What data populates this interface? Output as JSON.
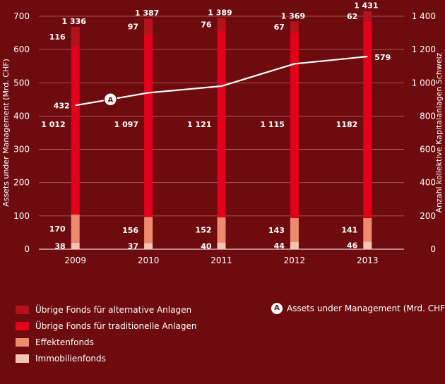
{
  "chart_data": {
    "type": "bar",
    "categories": [
      "2009",
      "2010",
      "2011",
      "2012",
      "2013"
    ],
    "series": [
      {
        "name": "Immobilienfonds",
        "color": "#f6c4b3",
        "values": [
          38,
          37,
          40,
          44,
          46
        ]
      },
      {
        "name": "Effektenfonds",
        "color": "#ee8a6d",
        "values": [
          170,
          156,
          152,
          143,
          141
        ]
      },
      {
        "name": "Übrige Fonds für traditionelle Anlagen",
        "color": "#e2001a",
        "values": [
          1012,
          1097,
          1121,
          1115,
          1182
        ]
      },
      {
        "name": "Übrige Fonds für alternative Anlagen",
        "color": "#b5111d",
        "values": [
          116,
          97,
          76,
          67,
          62
        ]
      }
    ],
    "value_labels": {
      "Immobilienfonds": [
        "38",
        "37",
        "40",
        "44",
        "46"
      ],
      "Effektenfonds": [
        "170",
        "156",
        "152",
        "143",
        "141"
      ],
      "Übrige Fonds für traditionelle Anlagen": [
        "1 012",
        "1 097",
        "1 121",
        "1 115",
        "1182"
      ],
      "Übrige Fonds für alternative Anlagen": [
        "116",
        "97",
        "76",
        "67",
        "62"
      ]
    },
    "totals": [
      "1 336",
      "1 387",
      "1 389",
      "1 369",
      "1 431"
    ],
    "totals_values": [
      1336,
      1387,
      1389,
      1369,
      1431
    ],
    "line": {
      "name": "Assets under Management (Mrd. CHF)",
      "marker": "A",
      "values": [
        432,
        470,
        490,
        557,
        579
      ],
      "labels": {
        "first": "432",
        "last": "579"
      }
    },
    "ylabel_left": "Assets under Management (Mrd. CHF)",
    "ylabel_right": "Anzahl kollektive Kapitalanlagen Schweiz",
    "ylim_left": [
      0,
      700
    ],
    "ylim_right": [
      0,
      1400
    ],
    "yticks_left": [
      "0",
      "100",
      "200",
      "300",
      "400",
      "500",
      "600",
      "700"
    ],
    "yticks_right": [
      "0",
      "200",
      "400",
      "600",
      "800",
      "1 000",
      "1 200",
      "1 400"
    ],
    "grid": true,
    "legend_position": "bottom"
  }
}
